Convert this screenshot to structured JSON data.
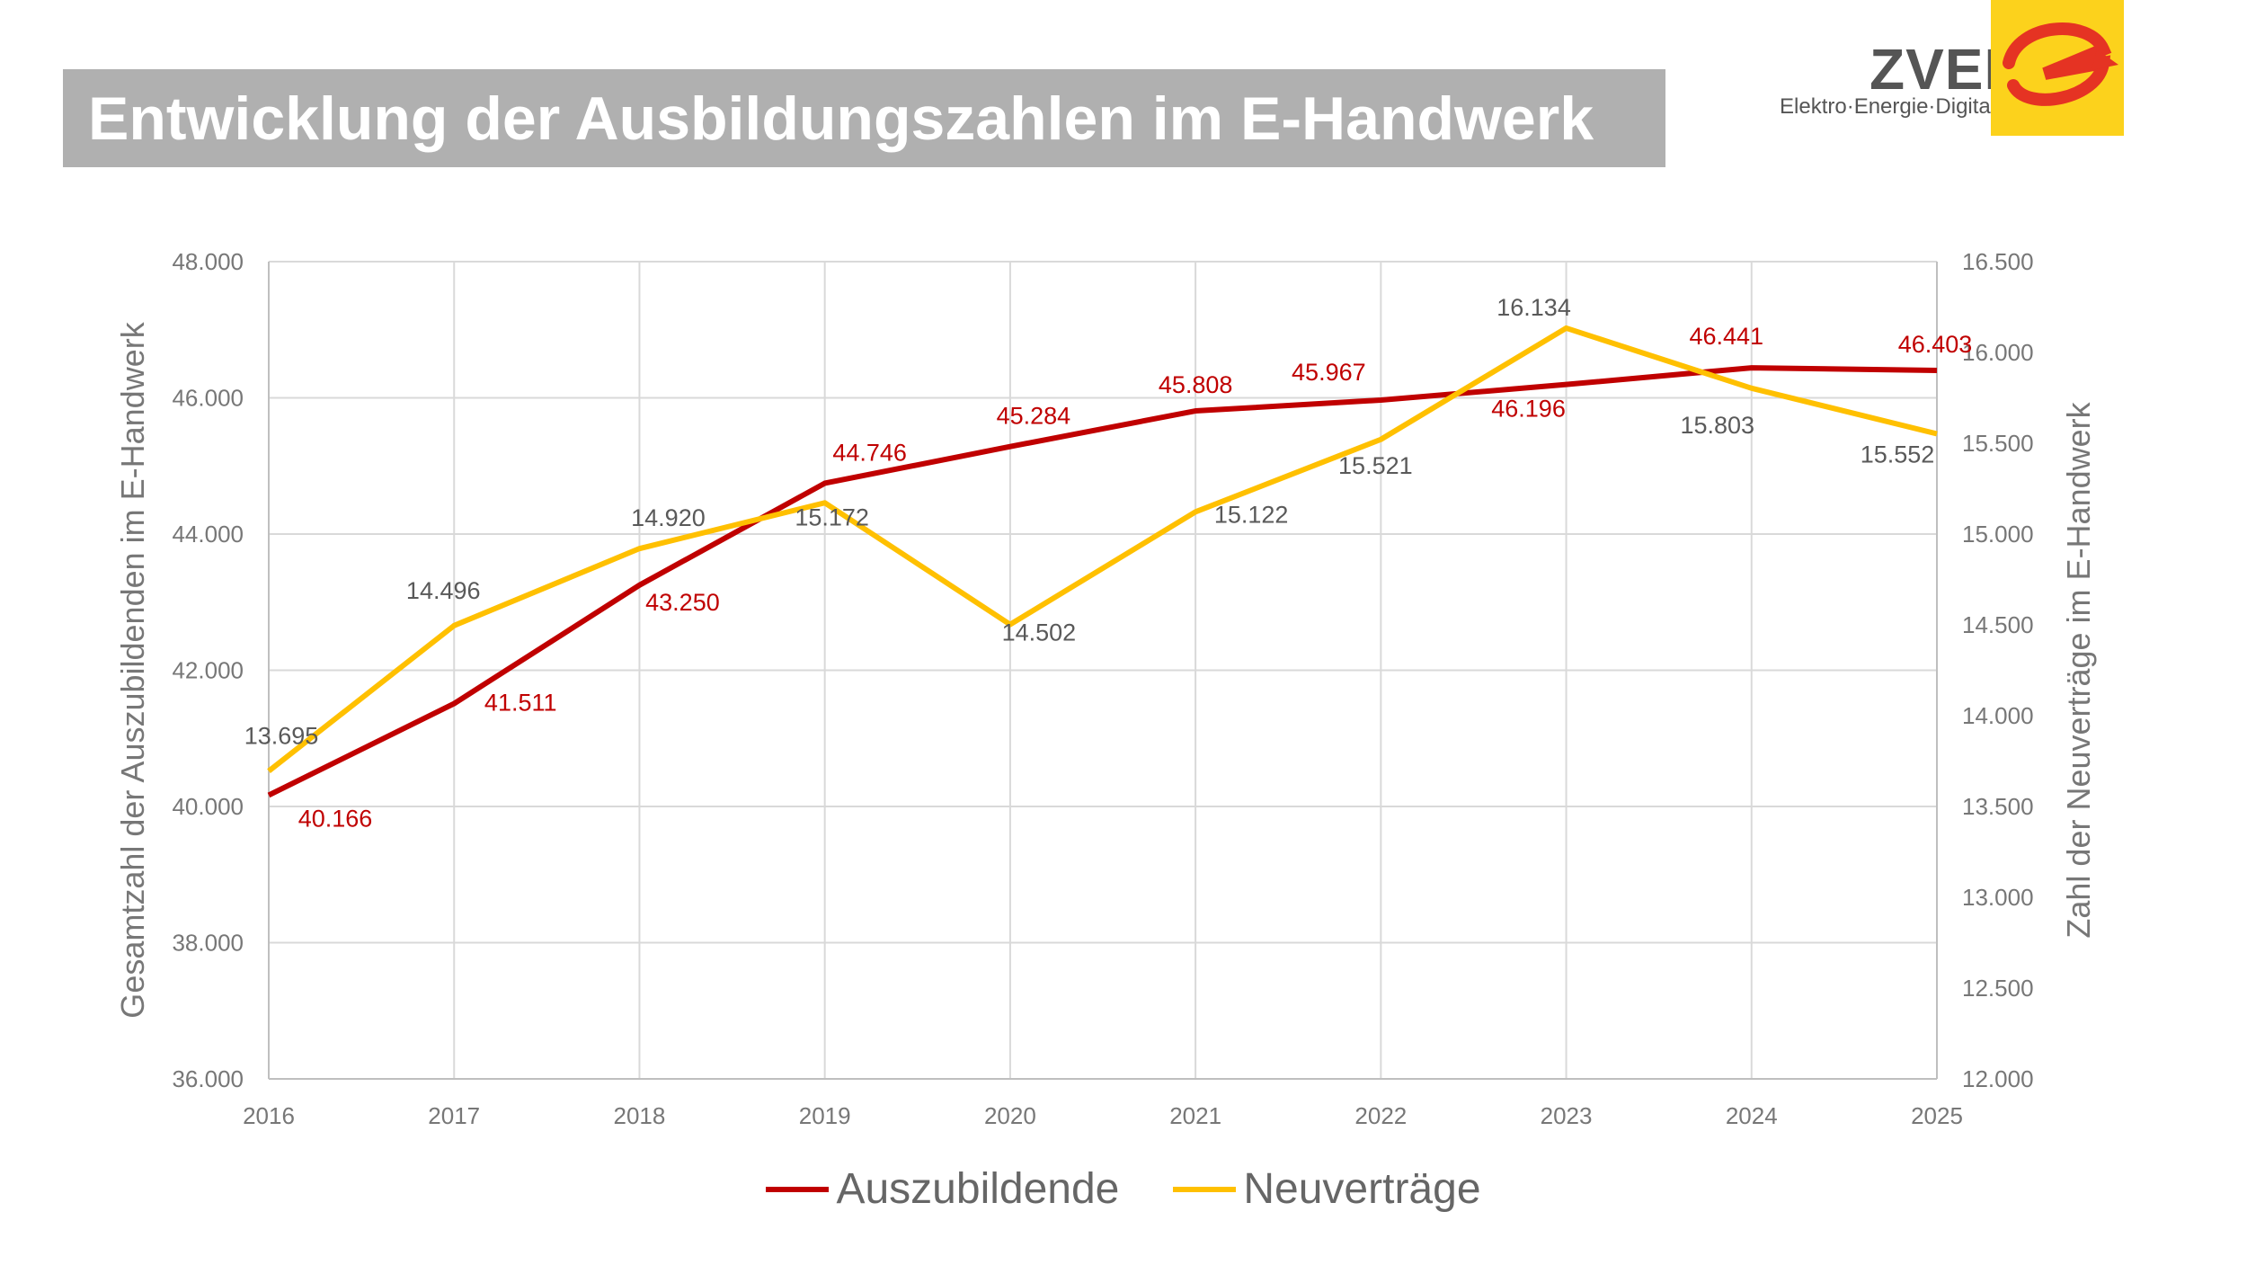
{
  "title": "Entwicklung der Ausbildungszahlen im E-Handwerk",
  "logo": {
    "name": "ZVEH",
    "tagline": "Elektro·Energie·Digital",
    "colors": {
      "box": "#fcd21c",
      "mark": "#e53323"
    }
  },
  "chart_data": {
    "type": "line",
    "title": "",
    "x": [
      "2016",
      "2017",
      "2018",
      "2019",
      "2020",
      "2021",
      "2022",
      "2023",
      "2024",
      "2025"
    ],
    "series": [
      {
        "name": "Auszubildende",
        "axis": "left",
        "color": "#c00000",
        "values": [
          40166,
          41511,
          43250,
          44746,
          45284,
          45808,
          45967,
          46196,
          46441,
          46403
        ],
        "labels": [
          "40.166",
          "41.511",
          "43.250",
          "44.746",
          "45.284",
          "45.808",
          "45.967",
          "46.196",
          "46.441",
          "46.403"
        ]
      },
      {
        "name": "Neuverträge",
        "axis": "right",
        "color": "#ffc000",
        "values": [
          13695,
          14496,
          14920,
          15172,
          14502,
          15122,
          15521,
          16134,
          15803,
          15552
        ],
        "labels": [
          "13.695",
          "14.496",
          "14.920",
          "15.172",
          "14.502",
          "15.122",
          "15.521",
          "16.134",
          "15.803",
          "15.552"
        ]
      }
    ],
    "ylabel": "Gesamtzahl der Auszubildenden im E-Handwerk",
    "y2label": "Zahl der Neuverträge im E-Handwerk",
    "ylim": [
      36000,
      48000
    ],
    "y2lim": [
      12000,
      16500
    ],
    "yticks": [
      "36.000",
      "38.000",
      "40.000",
      "42.000",
      "44.000",
      "46.000",
      "48.000"
    ],
    "y2ticks": [
      "12.000",
      "12.500",
      "13.000",
      "13.500",
      "14.000",
      "14.500",
      "15.000",
      "15.500",
      "16.000",
      "16.500"
    ],
    "grid": true,
    "legend": "bottom"
  }
}
